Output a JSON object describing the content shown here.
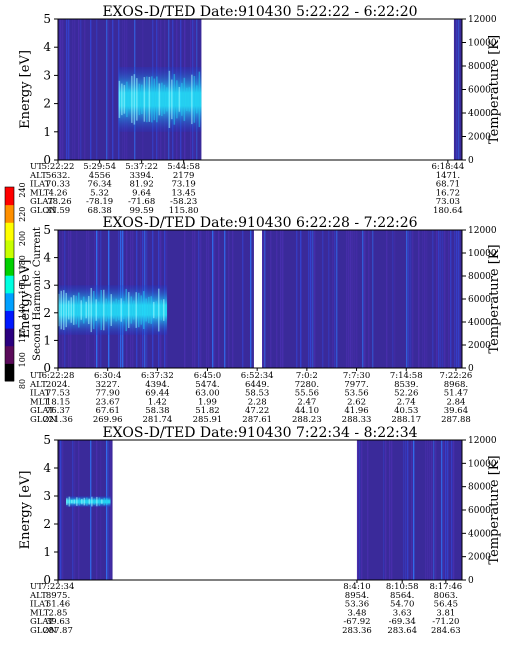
{
  "chart_data": [
    {
      "type": "heatmap",
      "title": "EXOS-D/TED   Date:910430   5:22:22 - 6:22:20",
      "ylabel": "Energy [eV]",
      "y2label": "Temperature [K]",
      "ylim": [
        0,
        5
      ],
      "y2lim": [
        0,
        12000
      ],
      "yticks": [
        "0",
        "1",
        "2",
        "3",
        "4",
        "5"
      ],
      "y2ticks": [
        "0",
        "2000",
        "4000",
        "6000",
        "8000",
        "10000",
        "12000"
      ],
      "data_segments": [
        [
          0.0,
          0.355
        ],
        [
          0.98,
          1.0
        ]
      ],
      "bright_band": {
        "x_from": 0.15,
        "x_to": 0.355,
        "y_low_eV": 1.0,
        "y_high_eV": 3.3
      },
      "row_labels": [
        "UT",
        "ALT",
        "ILAT",
        "MLT",
        "GLAT",
        "GLON"
      ],
      "columns": [
        {
          "at": 0.0,
          "values": [
            "5:22:22",
            "5632.",
            "70.33",
            "4.26",
            "-78.26",
            "31.59"
          ]
        },
        {
          "at": 0.103,
          "values": [
            "5:29:54",
            "4556",
            "76.34",
            "5.32",
            "-78.19",
            "68.38"
          ]
        },
        {
          "at": 0.207,
          "values": [
            "5:37:22",
            "3394.",
            "81.92",
            "9.64",
            "-71.68",
            "99.59"
          ]
        },
        {
          "at": 0.311,
          "values": [
            "5:44:58",
            "2179",
            "73.19",
            "13.45",
            "-58.23",
            "115.80"
          ]
        },
        {
          "at": 0.965,
          "values": [
            "6:18:44",
            "1471.",
            "68.71",
            "16.72",
            "73.03",
            "180.64"
          ]
        }
      ]
    },
    {
      "type": "heatmap",
      "title": "EXOS-D/TED   Date:910430   6:22:28 - 7:22:26",
      "ylabel": "Energy [eV]",
      "y2label": "Temperature [K]",
      "ylim": [
        0,
        5
      ],
      "y2lim": [
        0,
        12000
      ],
      "yticks": [
        "0",
        "1",
        "2",
        "3",
        "4",
        "5"
      ],
      "y2ticks": [
        "0",
        "2000",
        "4000",
        "6000",
        "8000",
        "10000",
        "12000"
      ],
      "data_segments": [
        [
          0.0,
          0.485
        ],
        [
          0.505,
          1.0
        ]
      ],
      "bright_band": {
        "x_from": 0.0,
        "x_to": 0.27,
        "y_low_eV": 1.2,
        "y_high_eV": 3.0
      },
      "row_labels": [
        "UT",
        "ALT",
        "ILAT",
        "MLT",
        "GLAT",
        "GLON"
      ],
      "columns": [
        {
          "at": 0.0,
          "values": [
            "6:22:28",
            "2024.",
            "77.53",
            "18.15",
            "76.37",
            "221.36"
          ]
        },
        {
          "at": 0.123,
          "values": [
            "6:30:4",
            "3227.",
            "77.90",
            "23.67",
            "67.61",
            "269.96"
          ]
        },
        {
          "at": 0.246,
          "values": [
            "6:37:32",
            "4394.",
            "69.44",
            "1.42",
            "58.38",
            "281.74"
          ]
        },
        {
          "at": 0.37,
          "values": [
            "6:45:0",
            "5474.",
            "63.00",
            "1.99",
            "51.82",
            "285.91"
          ]
        },
        {
          "at": 0.493,
          "values": [
            "6:52:34",
            "6449.",
            "58.53",
            "2.28",
            "47.22",
            "287.61"
          ]
        },
        {
          "at": 0.616,
          "values": [
            "7:0:2",
            "7280.",
            "55.56",
            "2.47",
            "44.10",
            "288.23"
          ]
        },
        {
          "at": 0.739,
          "values": [
            "7:7:30",
            "7977.",
            "53.56",
            "2.62",
            "41.96",
            "288.33"
          ]
        },
        {
          "at": 0.862,
          "values": [
            "7:14:58",
            "8539.",
            "52.26",
            "2.74",
            "40.53",
            "288.17"
          ]
        },
        {
          "at": 0.985,
          "values": [
            "7:22:26",
            "8968.",
            "51.47",
            "2.84",
            "39.64",
            "287.88"
          ]
        }
      ]
    },
    {
      "type": "heatmap",
      "title": "EXOS-D/TED   Date:910430   7:22:34 - 8:22:34",
      "ylabel": "Energy [eV]",
      "y2label": "Temperature [K]",
      "ylim": [
        0,
        5
      ],
      "y2lim": [
        0,
        12000
      ],
      "yticks": [
        "0",
        "1",
        "2",
        "3",
        "4",
        "5"
      ],
      "y2ticks": [
        "0",
        "2000",
        "4000",
        "6000",
        "8000",
        "10000",
        "12000"
      ],
      "data_segments": [
        [
          0.0,
          0.135
        ],
        [
          0.74,
          1.0
        ]
      ],
      "bright_band": {
        "x_from": 0.02,
        "x_to": 0.13,
        "y_low_eV": 2.6,
        "y_high_eV": 3.0
      },
      "row_labels": [
        "UT",
        "ALT",
        "ILAT",
        "MLT",
        "GLAT",
        "GLON"
      ],
      "columns": [
        {
          "at": 0.0,
          "values": [
            "7:22:34",
            "8975.",
            "51.46",
            "2.85",
            "39.63",
            "287.87"
          ]
        },
        {
          "at": 0.74,
          "values": [
            "8:4:10",
            "8954.",
            "53.36",
            "3.48",
            "-67.92",
            "283.36"
          ]
        },
        {
          "at": 0.852,
          "values": [
            "8:10:58",
            "8564.",
            "54.70",
            "3.63",
            "-69.34",
            "283.64"
          ]
        },
        {
          "at": 0.96,
          "values": [
            "8:17:46",
            "8063.",
            "56.45",
            "3.81",
            "-71.20",
            "284.63"
          ]
        }
      ]
    }
  ],
  "colorbar": {
    "label": "Second Harmonic Current",
    "ticks": [
      "80",
      "100",
      "120",
      "140",
      "160",
      "180",
      "200",
      "220",
      "240"
    ],
    "colors": [
      "#000000",
      "#5a0a5a",
      "#2b007f",
      "#0018ff",
      "#00a0ff",
      "#00ffe0",
      "#00d000",
      "#c8ff00",
      "#ffff00",
      "#ff9000",
      "#ff0000"
    ]
  },
  "colors": {
    "background": "#3a2a9a",
    "band_low": "#1a3ad0",
    "band_high": "#20f0ff"
  }
}
